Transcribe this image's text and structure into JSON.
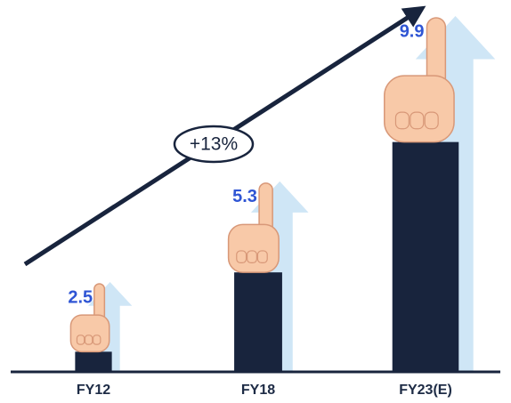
{
  "chart_data": {
    "type": "bar",
    "categories": [
      "FY12",
      "FY18",
      "FY23(E)"
    ],
    "values": [
      2.5,
      5.3,
      9.9
    ],
    "color": "#18243d",
    "annotation": "+13%"
  }
}
